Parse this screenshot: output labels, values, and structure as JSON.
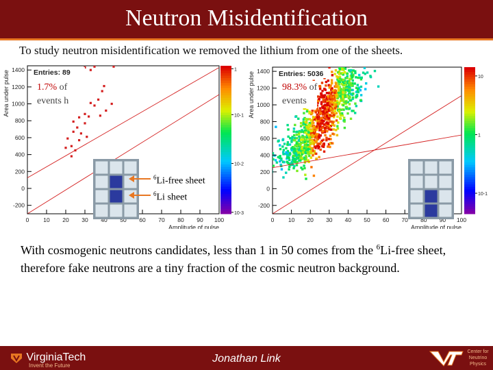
{
  "slide": {
    "title": "Neutron Misidentification",
    "intro": "To study neutron misidentification we removed the lithium from one of the sheets.",
    "conclusion_part1": "With cosmogenic neutrons candidates, less than 1 in 50 comes from the ",
    "conclusion_sup": "6",
    "conclusion_part2": "Li-free sheet, therefore fake neutrons are a tiny fraction of the cosmic neutron background.",
    "annot_left_pct": "1.7%",
    "annot_left_rest1": "of",
    "annot_left_rest2": "events h",
    "annot_right_pct": "98.3%",
    "annot_right_rest1": "of",
    "annot_right_rest2": "events",
    "li_free_sup": "6",
    "li_free_label": "Li-free sheet",
    "li_sup": "6",
    "li_label": "Li sheet"
  },
  "footer": {
    "university": "VirginiaTech",
    "tagline": "Invent the Future",
    "presenter": "Jonathan Link",
    "center": "Center for Neutrino Physics"
  },
  "colors": {
    "title_bg": "#7a1010",
    "accent": "#e87722",
    "highlight_red": "#c00000",
    "cell_blue": "#2b3a9e",
    "cell_grey": "#dbe5ec",
    "cell_border": "#8a9aa6"
  },
  "chart_data": [
    {
      "type": "heatmap",
      "panel": "left",
      "stats_label": "Entries: 89",
      "xlabel": "Amplitude of pulse",
      "ylabel": "Area under pulse",
      "xlim": [
        0,
        100
      ],
      "ylim": [
        -300,
        1450
      ],
      "xticks": [
        "0",
        "10",
        "20",
        "30",
        "40",
        "50",
        "60",
        "70",
        "80",
        "90",
        "100"
      ],
      "yticks": [
        "-200",
        "0",
        "200",
        "400",
        "600",
        "800",
        "1000",
        "1200",
        "1400"
      ],
      "colorbar_ticks": [
        "1",
        "10^-1",
        "10^-2",
        "10^-3"
      ],
      "colorbar_range": [
        0.001,
        1
      ],
      "points": [
        [
          30,
          1430
        ],
        [
          33,
          1400
        ],
        [
          35,
          1440
        ],
        [
          45,
          1440
        ],
        [
          40,
          1210
        ],
        [
          39,
          1150
        ],
        [
          33,
          1010
        ],
        [
          37,
          1050
        ],
        [
          41,
          920
        ],
        [
          30,
          880
        ],
        [
          32,
          850
        ],
        [
          27,
          840
        ],
        [
          30,
          770
        ],
        [
          24,
          790
        ],
        [
          24,
          670
        ],
        [
          27,
          570
        ],
        [
          21,
          590
        ],
        [
          23,
          500
        ],
        [
          23,
          380
        ],
        [
          35,
          980
        ],
        [
          44,
          1000
        ],
        [
          38,
          860
        ],
        [
          26,
          720
        ],
        [
          28,
          650
        ],
        [
          31,
          610
        ],
        [
          20,
          480
        ],
        [
          25,
          450
        ]
      ],
      "lines": [
        {
          "x": [
            0,
            100
          ],
          "y": [
            125,
            1430
          ]
        },
        {
          "x": [
            0,
            100
          ],
          "y": [
            -300,
            1110
          ]
        }
      ],
      "detector_grid": [
        [
          0,
          0,
          0
        ],
        [
          0,
          1,
          0
        ],
        [
          0,
          1,
          0
        ],
        [
          0,
          0,
          0
        ]
      ]
    },
    {
      "type": "heatmap",
      "panel": "right",
      "stats_label": "Entries: 5036",
      "xlabel": "Amplitude of pulse",
      "ylabel": "Area under pulse",
      "xlim": [
        0,
        100
      ],
      "ylim": [
        -300,
        1450
      ],
      "xticks": [
        "0",
        "10",
        "20",
        "30",
        "40",
        "50",
        "60",
        "70",
        "80",
        "90",
        "100"
      ],
      "yticks": [
        "-200",
        "0",
        "200",
        "400",
        "600",
        "800",
        "1000",
        "1200",
        "1400"
      ],
      "colorbar_ticks": [
        "10",
        "1",
        "10^-1"
      ],
      "colorbar_range": [
        0.1,
        10
      ],
      "cluster": {
        "x_start": [
          10,
          300
        ],
        "x_end": [
          42,
          1380
        ],
        "spread_x": 5,
        "spread_y": 120,
        "peak_x": [
          20,
          34
        ]
      },
      "lines": [
        {
          "x": [
            0,
            100
          ],
          "y": [
            250,
            640
          ]
        },
        {
          "x": [
            0,
            100
          ],
          "y": [
            -300,
            1110
          ]
        }
      ],
      "detector_grid": [
        [
          0,
          0,
          0
        ],
        [
          0,
          0,
          0
        ],
        [
          0,
          1,
          0
        ],
        [
          0,
          1,
          0
        ]
      ]
    }
  ]
}
